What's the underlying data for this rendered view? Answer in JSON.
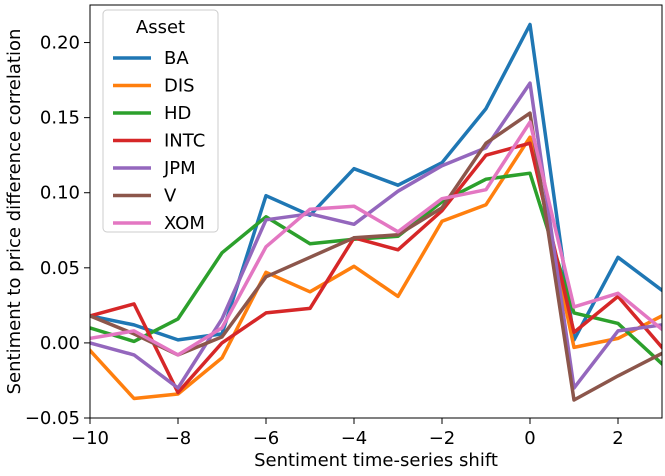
{
  "chart_data": {
    "type": "line",
    "xlabel": "Sentiment time-series shift",
    "ylabel": "Sentiment to price difference correlation",
    "xlim": [
      -10,
      3
    ],
    "ylim": [
      -0.05,
      0.225
    ],
    "xticks": [
      -10,
      -8,
      -6,
      -4,
      -2,
      0,
      2
    ],
    "xtick_labels": [
      "−10",
      "−8",
      "−6",
      "−4",
      "−2",
      "0",
      "2"
    ],
    "yticks": [
      -0.05,
      0.0,
      0.05,
      0.1,
      0.15,
      0.2
    ],
    "ytick_labels": [
      "−0.05",
      "0.00",
      "0.05",
      "0.10",
      "0.15",
      "0.20"
    ],
    "grid": false,
    "legend": {
      "title": "Asset",
      "placement": "top-left"
    },
    "x": [
      -10,
      -9,
      -8,
      -7,
      -6,
      -5,
      -4,
      -3,
      -2,
      -1,
      0,
      1,
      2,
      3
    ],
    "series": [
      {
        "name": "BA",
        "color": "#1f77b4",
        "values": [
          0.018,
          0.012,
          0.002,
          0.006,
          0.098,
          0.085,
          0.116,
          0.105,
          0.12,
          0.156,
          0.212,
          0.002,
          0.057,
          0.035
        ]
      },
      {
        "name": "DIS",
        "color": "#ff7f0e",
        "values": [
          -0.005,
          -0.037,
          -0.034,
          -0.01,
          0.047,
          0.034,
          0.051,
          0.031,
          0.081,
          0.092,
          0.137,
          -0.003,
          0.003,
          0.018
        ]
      },
      {
        "name": "HD",
        "color": "#2ca02c",
        "values": [
          0.01,
          0.001,
          0.016,
          0.06,
          0.084,
          0.066,
          0.069,
          0.071,
          0.094,
          0.109,
          0.113,
          0.02,
          0.013,
          -0.014
        ]
      },
      {
        "name": "INTC",
        "color": "#d62728",
        "values": [
          0.018,
          0.026,
          -0.033,
          0.0,
          0.02,
          0.023,
          0.07,
          0.062,
          0.088,
          0.125,
          0.133,
          0.007,
          0.031,
          -0.003
        ]
      },
      {
        "name": "JPM",
        "color": "#9467bd",
        "values": [
          0.0,
          -0.008,
          -0.03,
          0.016,
          0.082,
          0.086,
          0.079,
          0.101,
          0.118,
          0.13,
          0.173,
          -0.03,
          0.008,
          0.012
        ]
      },
      {
        "name": "V",
        "color": "#8c564b",
        "values": [
          0.018,
          0.006,
          -0.008,
          0.004,
          0.044,
          0.057,
          0.07,
          0.072,
          0.09,
          0.133,
          0.153,
          -0.038,
          -0.022,
          -0.007
        ]
      },
      {
        "name": "XOM",
        "color": "#e377c2",
        "values": [
          0.003,
          0.008,
          -0.008,
          0.01,
          0.064,
          0.089,
          0.091,
          0.074,
          0.096,
          0.102,
          0.147,
          0.024,
          0.033,
          0.009
        ]
      }
    ]
  }
}
